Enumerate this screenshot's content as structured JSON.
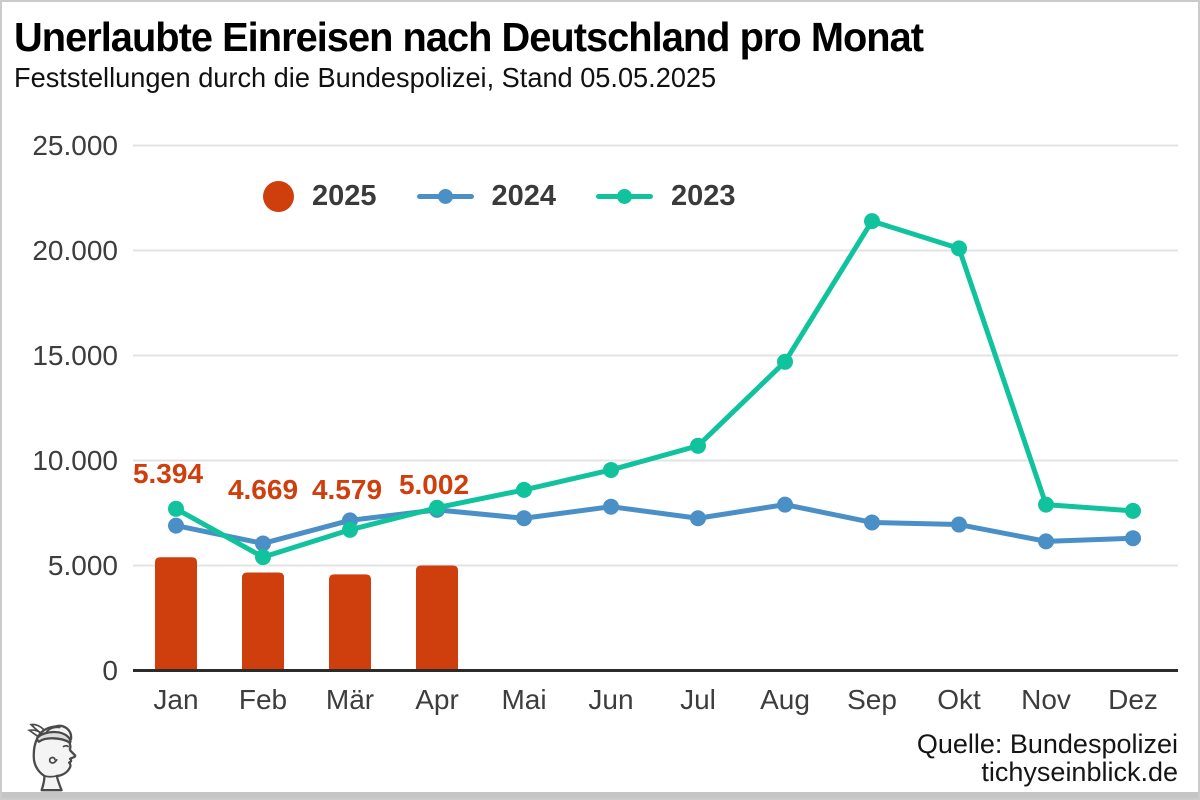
{
  "header": {
    "title": "Unerlaubte Einreisen nach Deutschland pro Monat",
    "subtitle": "Feststellungen durch die Bundespolizei, Stand 05.05.2025"
  },
  "legend": [
    {
      "label": "2025",
      "swatch": "dot",
      "color": "#cf3f0e"
    },
    {
      "label": "2024",
      "swatch": "line",
      "color": "#4a8fc6"
    },
    {
      "label": "2023",
      "swatch": "line",
      "color": "#10c39c"
    }
  ],
  "source": {
    "line1": "Quelle: Bundespolizei",
    "line2": "tichyseinblick.de"
  },
  "logo": {
    "name": "tichys-einblick-hermes-head-logo"
  },
  "chart_data": {
    "type": "bar+line",
    "categories": [
      "Jan",
      "Feb",
      "Mär",
      "Apr",
      "Mai",
      "Jun",
      "Jul",
      "Aug",
      "Sep",
      "Okt",
      "Nov",
      "Dez"
    ],
    "series": [
      {
        "name": "2025",
        "type": "bar",
        "color": "#cf3f0e",
        "values": [
          5394,
          4669,
          4579,
          5002,
          null,
          null,
          null,
          null,
          null,
          null,
          null,
          null
        ],
        "data_labels": [
          "5.394",
          "4.669",
          "4.579",
          "5.002"
        ]
      },
      {
        "name": "2024",
        "type": "line",
        "color": "#4a8fc6",
        "values": [
          6900,
          6050,
          7150,
          7650,
          7250,
          7800,
          7250,
          7900,
          7050,
          6950,
          6150,
          6300
        ]
      },
      {
        "name": "2023",
        "type": "line",
        "color": "#10c39c",
        "values": [
          7700,
          5400,
          6700,
          7750,
          8600,
          9550,
          10700,
          14700,
          21400,
          20100,
          7900,
          7600
        ]
      }
    ],
    "yticks": {
      "labels": [
        "0",
        "5.000",
        "10.000",
        "15.000",
        "20.000",
        "25.000"
      ],
      "values": [
        0,
        5000,
        10000,
        15000,
        20000,
        25000
      ]
    },
    "ylim": [
      0,
      25000
    ],
    "grid": true,
    "legend_position": "top-left-inside",
    "colors": {
      "gridline": "#e3e3e3",
      "axis_line": "#2b2b2b",
      "tick_text": "#3d3d3d"
    }
  }
}
